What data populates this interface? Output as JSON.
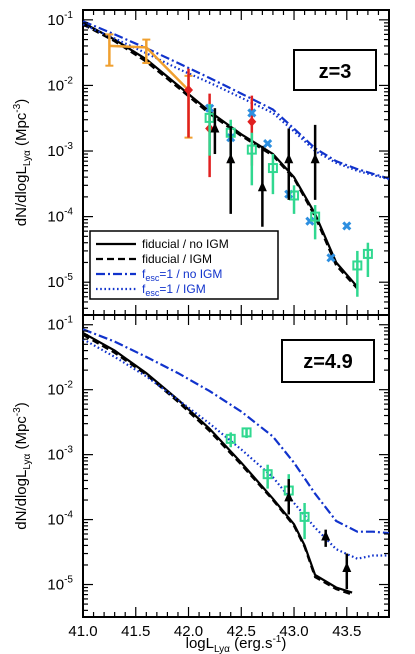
{
  "chart_data": [
    {
      "type": "line",
      "panel": "top",
      "redshift_label": "z=3",
      "ylabel": "dN/dlogL_Lyα (Mpc^-3)",
      "xlim": [
        41.0,
        43.9
      ],
      "ylim_log10": [
        -5.5,
        -0.85
      ],
      "y_scale": "log",
      "y_ticks": [
        {
          "exp": -1,
          "label_base": "10",
          "label_exp": "-1"
        },
        {
          "exp": -2,
          "label_base": "10",
          "label_exp": "-2"
        },
        {
          "exp": -3,
          "label_base": "10",
          "label_exp": "-3"
        },
        {
          "exp": -4,
          "label_base": "10",
          "label_exp": "-4"
        },
        {
          "exp": -5,
          "label_base": "10",
          "label_exp": "-5"
        }
      ],
      "legend": {
        "placement": "lower-left",
        "entries": [
          {
            "label": "fiducial / no IGM",
            "style": "solid",
            "color": "#000000"
          },
          {
            "label": "fiducial / IGM",
            "style": "dashed",
            "color": "#000000"
          },
          {
            "label": "f_esc=1 / no IGM",
            "style": "dashdot",
            "color": "#1133cc"
          },
          {
            "label": "f_esc=1 / IGM",
            "style": "dotted",
            "color": "#1133cc"
          }
        ]
      },
      "series": [
        {
          "name": "fiducial / no IGM",
          "style": "solid",
          "color": "#000000",
          "x": [
            41.0,
            41.3,
            41.6,
            41.9,
            42.2,
            42.5,
            42.8,
            43.0,
            43.2,
            43.4,
            43.6
          ],
          "y": [
            0.09,
            0.05,
            0.025,
            0.01,
            0.004,
            0.0018,
            0.0009,
            0.0004,
            0.00011,
            2e-05,
            8.5e-06
          ]
        },
        {
          "name": "fiducial / IGM",
          "style": "dashed",
          "color": "#000000",
          "x": [
            41.0,
            41.3,
            41.6,
            41.9,
            42.2,
            42.5,
            42.8,
            43.0,
            43.2,
            43.4,
            43.6
          ],
          "y": [
            0.085,
            0.047,
            0.023,
            0.0093,
            0.0037,
            0.0017,
            0.00085,
            0.00038,
            0.0001,
            1.8e-05,
            8e-06
          ]
        },
        {
          "name": "f_esc=1 / no IGM",
          "style": "dashdot",
          "color": "#1133cc",
          "x": [
            41.0,
            41.3,
            41.6,
            41.9,
            42.2,
            42.5,
            42.8,
            43.0,
            43.2,
            43.4,
            43.6,
            43.9
          ],
          "y": [
            0.095,
            0.06,
            0.037,
            0.022,
            0.013,
            0.0075,
            0.0043,
            0.0022,
            0.0011,
            0.0007,
            0.00053,
            0.00038
          ]
        },
        {
          "name": "f_esc=1 / IGM",
          "style": "dotted",
          "color": "#1133cc",
          "x": [
            41.0,
            41.3,
            41.6,
            41.9,
            42.2,
            42.5,
            42.8,
            43.0,
            43.2,
            43.4,
            43.6,
            43.9
          ],
          "y": [
            0.085,
            0.052,
            0.031,
            0.018,
            0.011,
            0.0065,
            0.0038,
            0.002,
            0.001,
            0.00066,
            0.0005,
            0.00037
          ]
        }
      ],
      "observations": [
        {
          "marker": "orange-errbar",
          "color": "#f0a030",
          "connected": true,
          "x": [
            41.25,
            41.6,
            42.0
          ],
          "y": [
            0.04,
            0.038,
            0.0085
          ],
          "ylo": [
            0.02,
            0.022,
            0.0016
          ],
          "yhi": [
            0.06,
            0.05,
            0.014
          ]
        },
        {
          "marker": "red-diamond",
          "color": "#e02020",
          "x": [
            42.0,
            42.2,
            42.6
          ],
          "y": [
            0.0085,
            0.0022,
            0.0028
          ],
          "ylo": [
            0.0016,
            0.0004,
            0.0006
          ],
          "yhi": [
            0.018,
            0.0075,
            0.007
          ]
        },
        {
          "marker": "blue-x",
          "color": "#2d8fe0",
          "x": [
            42.2,
            42.4,
            42.6,
            42.75,
            42.95,
            43.15,
            43.35,
            43.5
          ],
          "y": [
            0.0045,
            0.0016,
            0.0038,
            0.0013,
            0.00022,
            8.5e-05,
            2.35e-05,
            7.2e-05
          ],
          "ylo": [
            null,
            null,
            null,
            null,
            null,
            null,
            null,
            null
          ],
          "yhi": [
            null,
            null,
            null,
            null,
            null,
            null,
            null,
            null
          ]
        },
        {
          "marker": "green-square",
          "color": "#30d890",
          "x": [
            42.2,
            42.4,
            42.6,
            42.8,
            43.0,
            43.2,
            43.6,
            43.7
          ],
          "y": [
            0.0032,
            0.0019,
            0.00105,
            0.00055,
            0.00021,
            0.0001,
            1.8e-05,
            2.7e-05
          ],
          "ylo": [
            0.00085,
            0.0005,
            0.0003,
            0.00022,
            0.00011,
            4.5e-05,
            6e-06,
            1.2e-05
          ],
          "yhi": [
            0.0052,
            0.003,
            0.0019,
            0.0009,
            0.0003,
            0.00015,
            3e-05,
            4e-05
          ]
        },
        {
          "marker": "black-triangle",
          "color": "#000000",
          "x": [
            42.25,
            42.4,
            42.7,
            42.95,
            43.2
          ],
          "y": [
            0.0022,
            0.00075,
            0.00028,
            0.00075,
            0.00075
          ],
          "ylo": [
            0.0009,
            0.00011,
            7e-05,
            0.00018,
            0.00018
          ],
          "yhi": [
            0.0045,
            0.0024,
            0.0012,
            0.0022,
            0.0025
          ]
        }
      ]
    },
    {
      "type": "line",
      "panel": "bottom",
      "redshift_label": "z=4.9",
      "ylabel": "dN/dlogL_Lyα (Mpc^-3)",
      "xlabel": "logL_Lyα (erg.s^-1)",
      "xlim": [
        41.0,
        43.9
      ],
      "ylim_log10": [
        -5.5,
        -0.85
      ],
      "y_scale": "log",
      "x_ticks": [
        "41.0",
        "41.5",
        "42.0",
        "42.5",
        "43.0",
        "43.5"
      ],
      "y_ticks": [
        {
          "exp": -1,
          "label_base": "10",
          "label_exp": "-1"
        },
        {
          "exp": -2,
          "label_base": "10",
          "label_exp": "-2"
        },
        {
          "exp": -3,
          "label_base": "10",
          "label_exp": "-3"
        },
        {
          "exp": -4,
          "label_base": "10",
          "label_exp": "-4"
        },
        {
          "exp": -5,
          "label_base": "10",
          "label_exp": "-5"
        }
      ],
      "series": [
        {
          "name": "fiducial / no IGM",
          "style": "solid",
          "color": "#000000",
          "x": [
            41.0,
            41.3,
            41.6,
            41.9,
            42.2,
            42.5,
            42.8,
            43.0,
            43.1,
            43.2,
            43.4,
            43.55
          ],
          "y": [
            0.075,
            0.04,
            0.018,
            0.007,
            0.0025,
            0.00075,
            0.00021,
            8.5e-05,
            4e-05,
            1.4e-05,
            9e-06,
            7.5e-06
          ]
        },
        {
          "name": "fiducial / IGM",
          "style": "dashed",
          "color": "#000000",
          "x": [
            41.0,
            41.3,
            41.6,
            41.9,
            42.2,
            42.5,
            42.8,
            43.0,
            43.1,
            43.2,
            43.4,
            43.55
          ],
          "y": [
            0.07,
            0.037,
            0.017,
            0.0065,
            0.0023,
            0.0007,
            0.0002,
            8e-05,
            3.8e-05,
            1.3e-05,
            8.5e-06,
            7e-06
          ]
        },
        {
          "name": "f_esc=1 / no IGM",
          "style": "dashdot",
          "color": "#1133cc",
          "x": [
            41.0,
            41.3,
            41.6,
            41.9,
            42.2,
            42.5,
            42.8,
            43.0,
            43.2,
            43.4,
            43.6,
            43.75,
            43.9
          ],
          "y": [
            0.085,
            0.055,
            0.032,
            0.018,
            0.0095,
            0.0046,
            0.0019,
            0.00075,
            0.00025,
            9.5e-05,
            6.5e-05,
            6.5e-05,
            6.2e-05
          ]
        },
        {
          "name": "f_esc=1 / IGM",
          "style": "dotted",
          "color": "#1133cc",
          "x": [
            41.0,
            41.3,
            41.6,
            41.9,
            42.2,
            42.5,
            42.8,
            43.0,
            43.2,
            43.4,
            43.6,
            43.75,
            43.9
          ],
          "y": [
            0.06,
            0.032,
            0.016,
            0.007,
            0.003,
            0.0012,
            0.00045,
            0.00018,
            7.5e-05,
            3.5e-05,
            2.5e-05,
            2.8e-05,
            2.8e-05
          ]
        }
      ],
      "observations": [
        {
          "marker": "green-square",
          "color": "#30d890",
          "x": [
            42.4,
            42.55,
            42.75,
            42.95,
            43.1
          ],
          "y": [
            0.00175,
            0.0022,
            0.0005,
            0.00028,
            0.00011
          ],
          "ylo": [
            0.0013,
            0.0018,
            0.0003,
            0.00014,
            5e-05
          ],
          "yhi": [
            0.0022,
            0.0026,
            0.0007,
            0.0005,
            0.00018
          ]
        },
        {
          "marker": "black-triangle",
          "color": "#000000",
          "x": [
            42.95,
            43.3,
            43.5
          ],
          "y": [
            0.00022,
            5.5e-05,
            1.8e-05
          ],
          "ylo": [
            0.00012,
            3.8e-05,
            8.5e-06
          ],
          "yhi": [
            0.00042,
            7e-05,
            3e-05
          ]
        }
      ]
    }
  ]
}
